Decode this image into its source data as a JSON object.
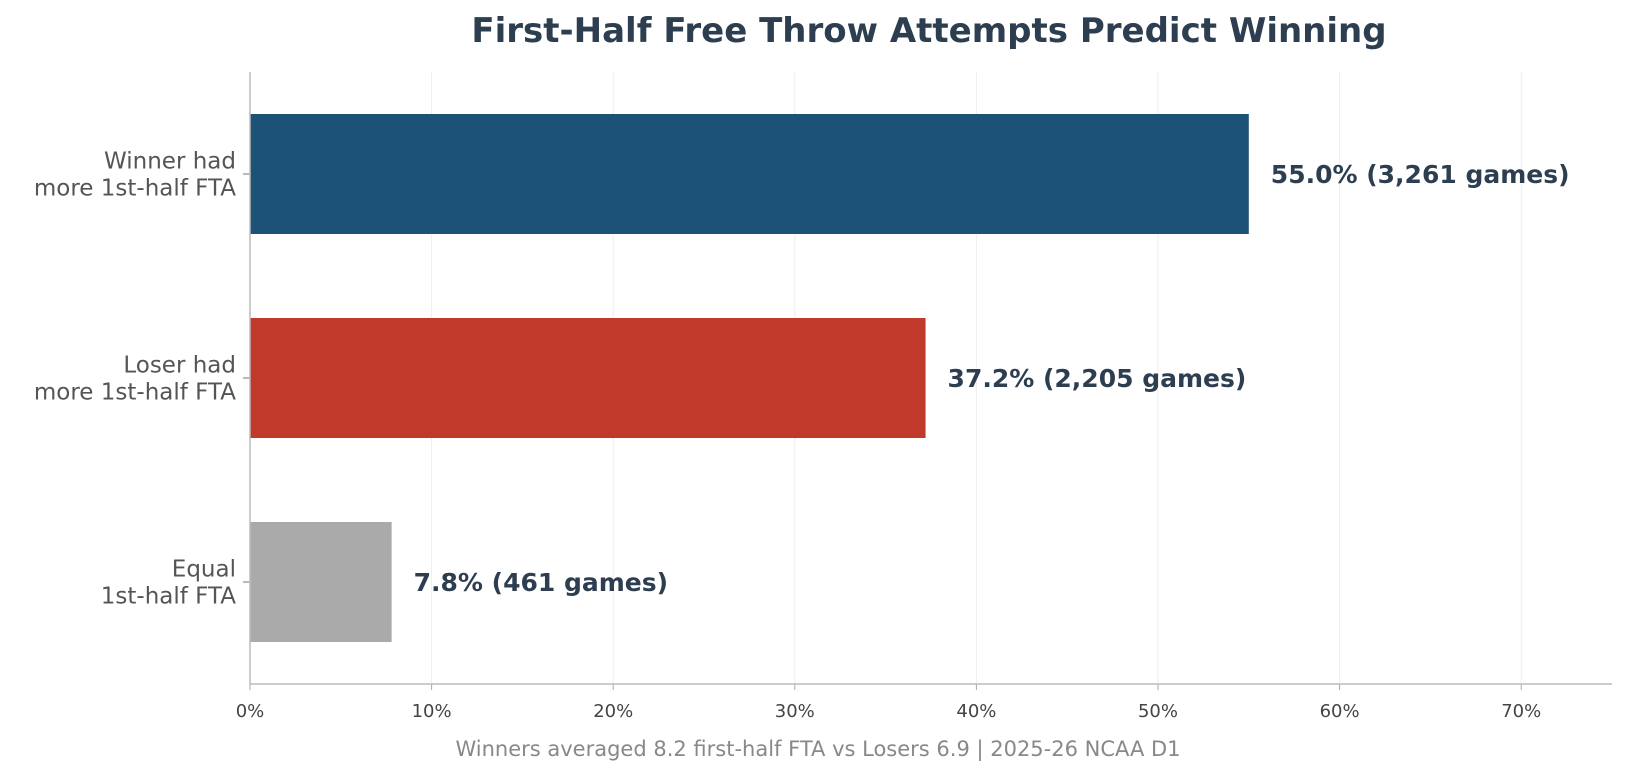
{
  "chart_data": {
    "type": "bar",
    "orientation": "horizontal",
    "title": "First-Half Free Throw Attempts Predict Winning",
    "subtitle": "Winners averaged 8.2 first-half FTA  vs  Losers 6.9  |  2025-26 NCAA D1",
    "categories": [
      [
        "Winner had",
        "more 1st-half FTA"
      ],
      [
        "Loser had",
        "more 1st-half FTA"
      ],
      [
        "Equal",
        "1st-half FTA"
      ]
    ],
    "values": [
      55.0,
      37.2,
      7.8
    ],
    "games": [
      3261,
      2205,
      461
    ],
    "data_labels": [
      "55.0%  (3,261 games)",
      "37.2%  (2,205 games)",
      "7.8%  (461 games)"
    ],
    "colors": [
      "#1b5276",
      "#c0392b",
      "#aaaaaa"
    ],
    "xlim": [
      0,
      75
    ],
    "xticks": [
      0,
      10,
      20,
      30,
      40,
      50,
      60,
      70
    ],
    "xtick_labels": [
      "0%",
      "10%",
      "20%",
      "30%",
      "40%",
      "50%",
      "60%",
      "70%"
    ],
    "xlabel": "",
    "ylabel": "",
    "grid": "x",
    "legend": "none"
  }
}
